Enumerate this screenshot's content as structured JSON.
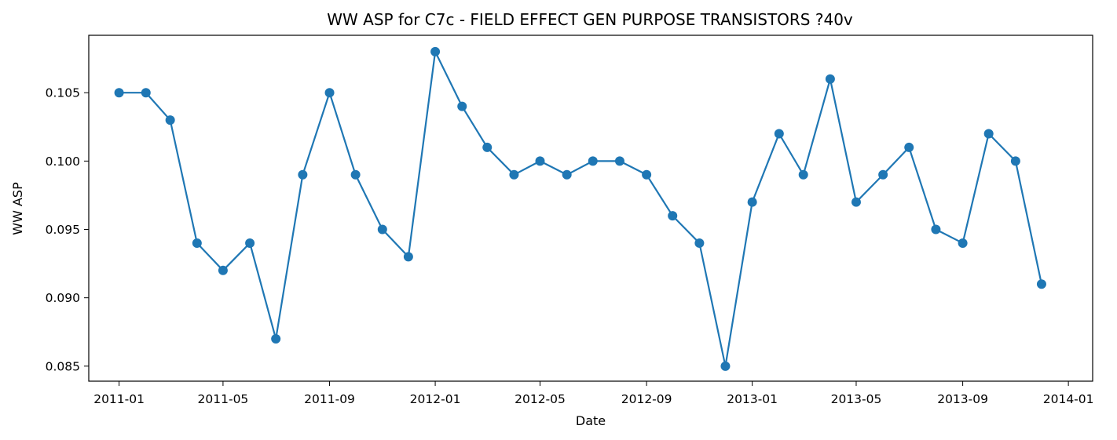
{
  "chart_data": {
    "type": "line",
    "title": "WW ASP for C7c - FIELD EFFECT GEN PURPOSE TRANSISTORS ?40v",
    "xlabel": "Date",
    "ylabel": "WW ASP",
    "x_tick_labels": [
      "2011-01",
      "2011-05",
      "2011-09",
      "2012-01",
      "2012-05",
      "2012-09",
      "2013-01",
      "2013-05",
      "2013-09",
      "2014-01"
    ],
    "y_tick_labels": [
      "0.085",
      "0.090",
      "0.095",
      "0.100",
      "0.105"
    ],
    "ylim": [
      0.0839,
      0.1092
    ],
    "xlim": [
      "2010-11-27",
      "2014-01-29"
    ],
    "grid": false,
    "color": "#1f77b4",
    "marker": "circle",
    "series": [
      {
        "x": [
          "2011-01-01",
          "2011-02-01",
          "2011-03-01",
          "2011-04-01",
          "2011-05-01",
          "2011-06-01",
          "2011-07-01",
          "2011-08-01",
          "2011-09-01",
          "2011-10-01",
          "2011-11-01",
          "2011-12-01",
          "2012-01-01",
          "2012-02-01",
          "2012-03-01",
          "2012-04-01",
          "2012-05-01",
          "2012-06-01",
          "2012-07-01",
          "2012-08-01",
          "2012-09-01",
          "2012-10-01",
          "2012-11-01",
          "2012-12-01",
          "2013-01-01",
          "2013-02-01",
          "2013-03-01",
          "2013-04-01",
          "2013-05-01",
          "2013-06-01",
          "2013-07-01",
          "2013-08-01",
          "2013-09-01",
          "2013-10-01",
          "2013-11-01",
          "2013-12-01"
        ],
        "values": [
          0.105,
          0.105,
          0.103,
          0.094,
          0.092,
          0.094,
          0.087,
          0.099,
          0.105,
          0.099,
          0.095,
          0.093,
          0.108,
          0.104,
          0.101,
          0.099,
          0.1,
          0.099,
          0.1,
          0.1,
          0.099,
          0.096,
          0.094,
          0.085,
          0.097,
          0.102,
          0.099,
          0.106,
          0.097,
          0.099,
          0.101,
          0.095,
          0.094,
          0.102,
          0.1,
          0.091
        ]
      }
    ]
  }
}
